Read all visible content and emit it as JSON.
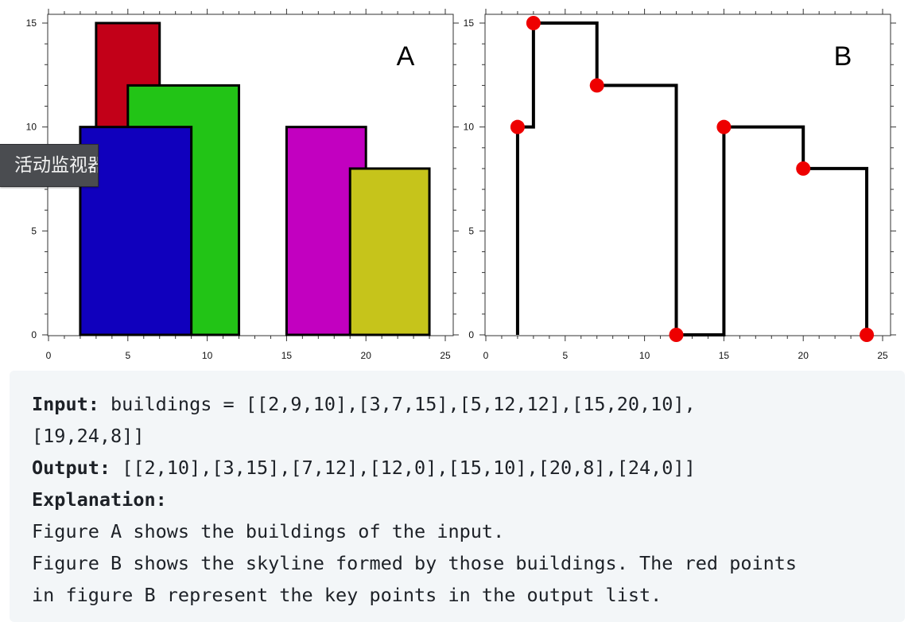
{
  "chart_data": [
    {
      "type": "bar",
      "panel_label": "A",
      "xlim": [
        0,
        25
      ],
      "ylim": [
        0,
        15
      ],
      "x_ticks": [
        0,
        5,
        10,
        15,
        20,
        25
      ],
      "y_ticks": [
        0,
        5,
        10,
        15
      ],
      "buildings": [
        {
          "left": 3,
          "right": 7,
          "height": 15,
          "color": "#c20018"
        },
        {
          "left": 5,
          "right": 12,
          "height": 12,
          "color": "#22c416"
        },
        {
          "left": 2,
          "right": 9,
          "height": 10,
          "color": "#1000bd"
        },
        {
          "left": 15,
          "right": 20,
          "height": 10,
          "color": "#c200c0"
        },
        {
          "left": 19,
          "right": 24,
          "height": 8,
          "color": "#c6c41b"
        }
      ]
    },
    {
      "type": "line",
      "panel_label": "B",
      "xlim": [
        0,
        25
      ],
      "ylim": [
        0,
        15
      ],
      "x_ticks": [
        0,
        5,
        10,
        15,
        20,
        25
      ],
      "y_ticks": [
        0,
        5,
        10,
        15
      ],
      "key_points": [
        [
          2,
          10
        ],
        [
          3,
          15
        ],
        [
          7,
          12
        ],
        [
          12,
          0
        ],
        [
          15,
          10
        ],
        [
          20,
          8
        ],
        [
          24,
          0
        ]
      ],
      "point_color": "#ee0000",
      "line_color": "#000000"
    }
  ],
  "text": {
    "input_label": "Input:",
    "input_line1": " buildings = [[2,9,10],[3,7,15],[5,12,12],[15,20,10],",
    "input_line2": "[19,24,8]]",
    "output_label": "Output:",
    "output_value": " [[2,10],[3,15],[7,12],[12,0],[15,10],[20,8],[24,0]]",
    "explanation_label": "Explanation:",
    "explanation_line1": "Figure A shows the buildings of the input.",
    "explanation_line2": "Figure B shows the skyline formed by those buildings. The red points",
    "explanation_line3": "in figure B represent the key points in the output list."
  },
  "overlay": {
    "label": "活动监视器"
  }
}
